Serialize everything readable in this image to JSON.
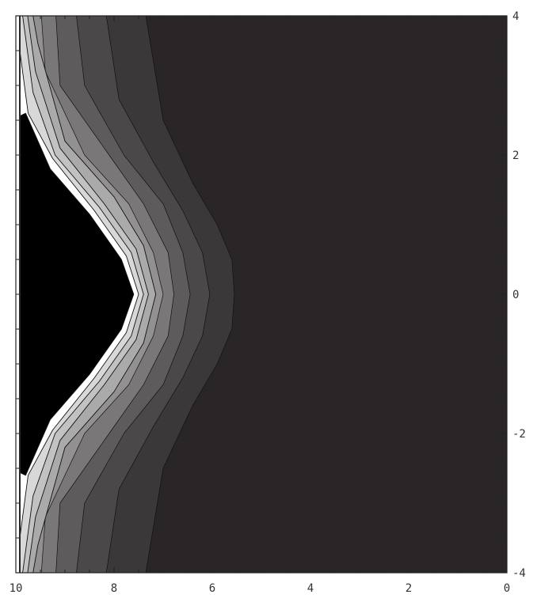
{
  "chart_data": {
    "type": "contour",
    "title": "",
    "xlabel": "",
    "ylabel": "",
    "x_axis": {
      "reversed": true,
      "range": [
        10,
        0
      ],
      "ticks": [
        "10",
        "8",
        "6",
        "4",
        "2",
        "0"
      ]
    },
    "y_axis": {
      "position": "right",
      "range": [
        -4,
        4
      ],
      "ticks": [
        "4",
        "2",
        "0",
        "-2",
        "-4"
      ]
    },
    "grid": false,
    "legend": "none",
    "colors": {
      "levels": [
        "#2a2627",
        "#3b3839",
        "#4b4849",
        "#5e5b5c",
        "#7a7778",
        "#939091",
        "#abaaab",
        "#c3c2c3",
        "#d9d8d9",
        "#ffffff"
      ],
      "contour_line": "#111111"
    },
    "contour_levels": [
      {
        "level": 1,
        "points": [
          {
            "x": 10.4,
            "y": 4.2
          },
          {
            "x": 7.4,
            "y": 4.2
          },
          {
            "x": 7.0,
            "y": 2.5
          },
          {
            "x": 6.4,
            "y": 1.6
          },
          {
            "x": 5.9,
            "y": 1.0
          },
          {
            "x": 5.6,
            "y": 0.5
          },
          {
            "x": 5.55,
            "y": 0.0
          },
          {
            "x": 5.6,
            "y": -0.5
          },
          {
            "x": 5.9,
            "y": -1.0
          },
          {
            "x": 6.4,
            "y": -1.6
          },
          {
            "x": 7.0,
            "y": -2.5
          },
          {
            "x": 7.4,
            "y": -4.2
          },
          {
            "x": 10.4,
            "y": -4.2
          }
        ]
      },
      {
        "level": 2,
        "points": [
          {
            "x": 10.4,
            "y": 4.2
          },
          {
            "x": 8.2,
            "y": 4.2
          },
          {
            "x": 7.9,
            "y": 2.8
          },
          {
            "x": 7.2,
            "y": 1.9
          },
          {
            "x": 6.6,
            "y": 1.2
          },
          {
            "x": 6.2,
            "y": 0.6
          },
          {
            "x": 6.05,
            "y": 0.0
          },
          {
            "x": 6.2,
            "y": -0.6
          },
          {
            "x": 6.6,
            "y": -1.2
          },
          {
            "x": 7.2,
            "y": -1.9
          },
          {
            "x": 7.9,
            "y": -2.8
          },
          {
            "x": 8.2,
            "y": -4.2
          },
          {
            "x": 10.4,
            "y": -4.2
          }
        ]
      },
      {
        "level": 3,
        "points": [
          {
            "x": 10.4,
            "y": 4.2
          },
          {
            "x": 8.8,
            "y": 4.2
          },
          {
            "x": 8.6,
            "y": 3.0
          },
          {
            "x": 7.8,
            "y": 2.0
          },
          {
            "x": 7.0,
            "y": 1.3
          },
          {
            "x": 6.6,
            "y": 0.6
          },
          {
            "x": 6.45,
            "y": 0.0
          },
          {
            "x": 6.6,
            "y": -0.6
          },
          {
            "x": 7.0,
            "y": -1.3
          },
          {
            "x": 7.8,
            "y": -2.0
          },
          {
            "x": 8.6,
            "y": -3.0
          },
          {
            "x": 8.8,
            "y": -4.2
          },
          {
            "x": 10.4,
            "y": -4.2
          }
        ]
      },
      {
        "level": 4,
        "points": [
          {
            "x": 10.4,
            "y": 4.2
          },
          {
            "x": 9.2,
            "y": 4.2
          },
          {
            "x": 9.1,
            "y": 3.0
          },
          {
            "x": 8.1,
            "y": 2.0
          },
          {
            "x": 7.4,
            "y": 1.3
          },
          {
            "x": 6.9,
            "y": 0.6
          },
          {
            "x": 6.78,
            "y": 0.0
          },
          {
            "x": 6.9,
            "y": -0.6
          },
          {
            "x": 7.4,
            "y": -1.3
          },
          {
            "x": 8.1,
            "y": -2.0
          },
          {
            "x": 9.1,
            "y": -3.0
          },
          {
            "x": 9.2,
            "y": -4.2
          },
          {
            "x": 10.4,
            "y": -4.2
          }
        ]
      },
      {
        "level": 5,
        "points": [
          {
            "x": 10.4,
            "y": 4.2
          },
          {
            "x": 9.5,
            "y": 4.2
          },
          {
            "x": 9.4,
            "y": 3.2
          },
          {
            "x": 8.6,
            "y": 2.0
          },
          {
            "x": 7.7,
            "y": 1.3
          },
          {
            "x": 7.2,
            "y": 0.6
          },
          {
            "x": 7.0,
            "y": 0.0
          },
          {
            "x": 7.2,
            "y": -0.6
          },
          {
            "x": 7.7,
            "y": -1.3
          },
          {
            "x": 8.6,
            "y": -2.0
          },
          {
            "x": 9.4,
            "y": -3.2
          },
          {
            "x": 9.5,
            "y": -4.2
          },
          {
            "x": 10.4,
            "y": -4.2
          }
        ]
      },
      {
        "level": 6,
        "points": [
          {
            "x": 10.4,
            "y": 4.2
          },
          {
            "x": 9.7,
            "y": 4.2
          },
          {
            "x": 9.55,
            "y": 3.6
          },
          {
            "x": 9.0,
            "y": 2.2
          },
          {
            "x": 8.0,
            "y": 1.4
          },
          {
            "x": 7.4,
            "y": 0.7
          },
          {
            "x": 7.15,
            "y": 0.0
          },
          {
            "x": 7.4,
            "y": -0.7
          },
          {
            "x": 8.0,
            "y": -1.4
          },
          {
            "x": 9.0,
            "y": -2.2
          },
          {
            "x": 9.55,
            "y": -3.6
          },
          {
            "x": 9.7,
            "y": -4.2
          },
          {
            "x": 10.4,
            "y": -4.2
          }
        ]
      },
      {
        "level": 7,
        "points": [
          {
            "x": 10.4,
            "y": 4.2
          },
          {
            "x": 9.8,
            "y": 4.2
          },
          {
            "x": 9.6,
            "y": 3.2
          },
          {
            "x": 9.1,
            "y": 2.1
          },
          {
            "x": 8.2,
            "y": 1.3
          },
          {
            "x": 7.55,
            "y": 0.65
          },
          {
            "x": 7.3,
            "y": 0.0
          },
          {
            "x": 7.55,
            "y": -0.65
          },
          {
            "x": 8.2,
            "y": -1.3
          },
          {
            "x": 9.1,
            "y": -2.1
          },
          {
            "x": 9.6,
            "y": -3.2
          },
          {
            "x": 9.8,
            "y": -4.2
          },
          {
            "x": 10.4,
            "y": -4.2
          }
        ]
      },
      {
        "level": 8,
        "points": [
          {
            "x": 10.4,
            "y": 4.2
          },
          {
            "x": 9.9,
            "y": 4.2
          },
          {
            "x": 9.65,
            "y": 2.9
          },
          {
            "x": 9.2,
            "y": 2.0
          },
          {
            "x": 8.3,
            "y": 1.25
          },
          {
            "x": 7.65,
            "y": 0.6
          },
          {
            "x": 7.4,
            "y": 0.0
          },
          {
            "x": 7.65,
            "y": -0.6
          },
          {
            "x": 8.3,
            "y": -1.25
          },
          {
            "x": 9.2,
            "y": -2.0
          },
          {
            "x": 9.65,
            "y": -2.9
          },
          {
            "x": 9.9,
            "y": -4.2
          },
          {
            "x": 10.4,
            "y": -4.2
          }
        ]
      },
      {
        "level": 9,
        "points": [
          {
            "x": 10.4,
            "y": 4.2
          },
          {
            "x": 10.05,
            "y": 4.2
          },
          {
            "x": 9.75,
            "y": 2.6
          },
          {
            "x": 9.25,
            "y": 1.95
          },
          {
            "x": 8.4,
            "y": 1.2
          },
          {
            "x": 7.75,
            "y": 0.55
          },
          {
            "x": 7.5,
            "y": 0.0
          },
          {
            "x": 7.75,
            "y": -0.55
          },
          {
            "x": 8.4,
            "y": -1.2
          },
          {
            "x": 9.25,
            "y": -1.95
          },
          {
            "x": 9.75,
            "y": -2.6
          },
          {
            "x": 10.05,
            "y": -4.2
          },
          {
            "x": 10.4,
            "y": -4.2
          }
        ]
      },
      {
        "level": 10,
        "points": [
          {
            "x": 10.4,
            "y": 2.4
          },
          {
            "x": 9.8,
            "y": 2.6
          },
          {
            "x": 9.3,
            "y": 1.8
          },
          {
            "x": 8.5,
            "y": 1.15
          },
          {
            "x": 7.85,
            "y": 0.5
          },
          {
            "x": 7.6,
            "y": 0.0
          },
          {
            "x": 7.85,
            "y": -0.5
          },
          {
            "x": 8.5,
            "y": -1.15
          },
          {
            "x": 9.3,
            "y": -1.8
          },
          {
            "x": 9.8,
            "y": -2.6
          },
          {
            "x": 10.4,
            "y": -2.4
          }
        ]
      }
    ]
  }
}
